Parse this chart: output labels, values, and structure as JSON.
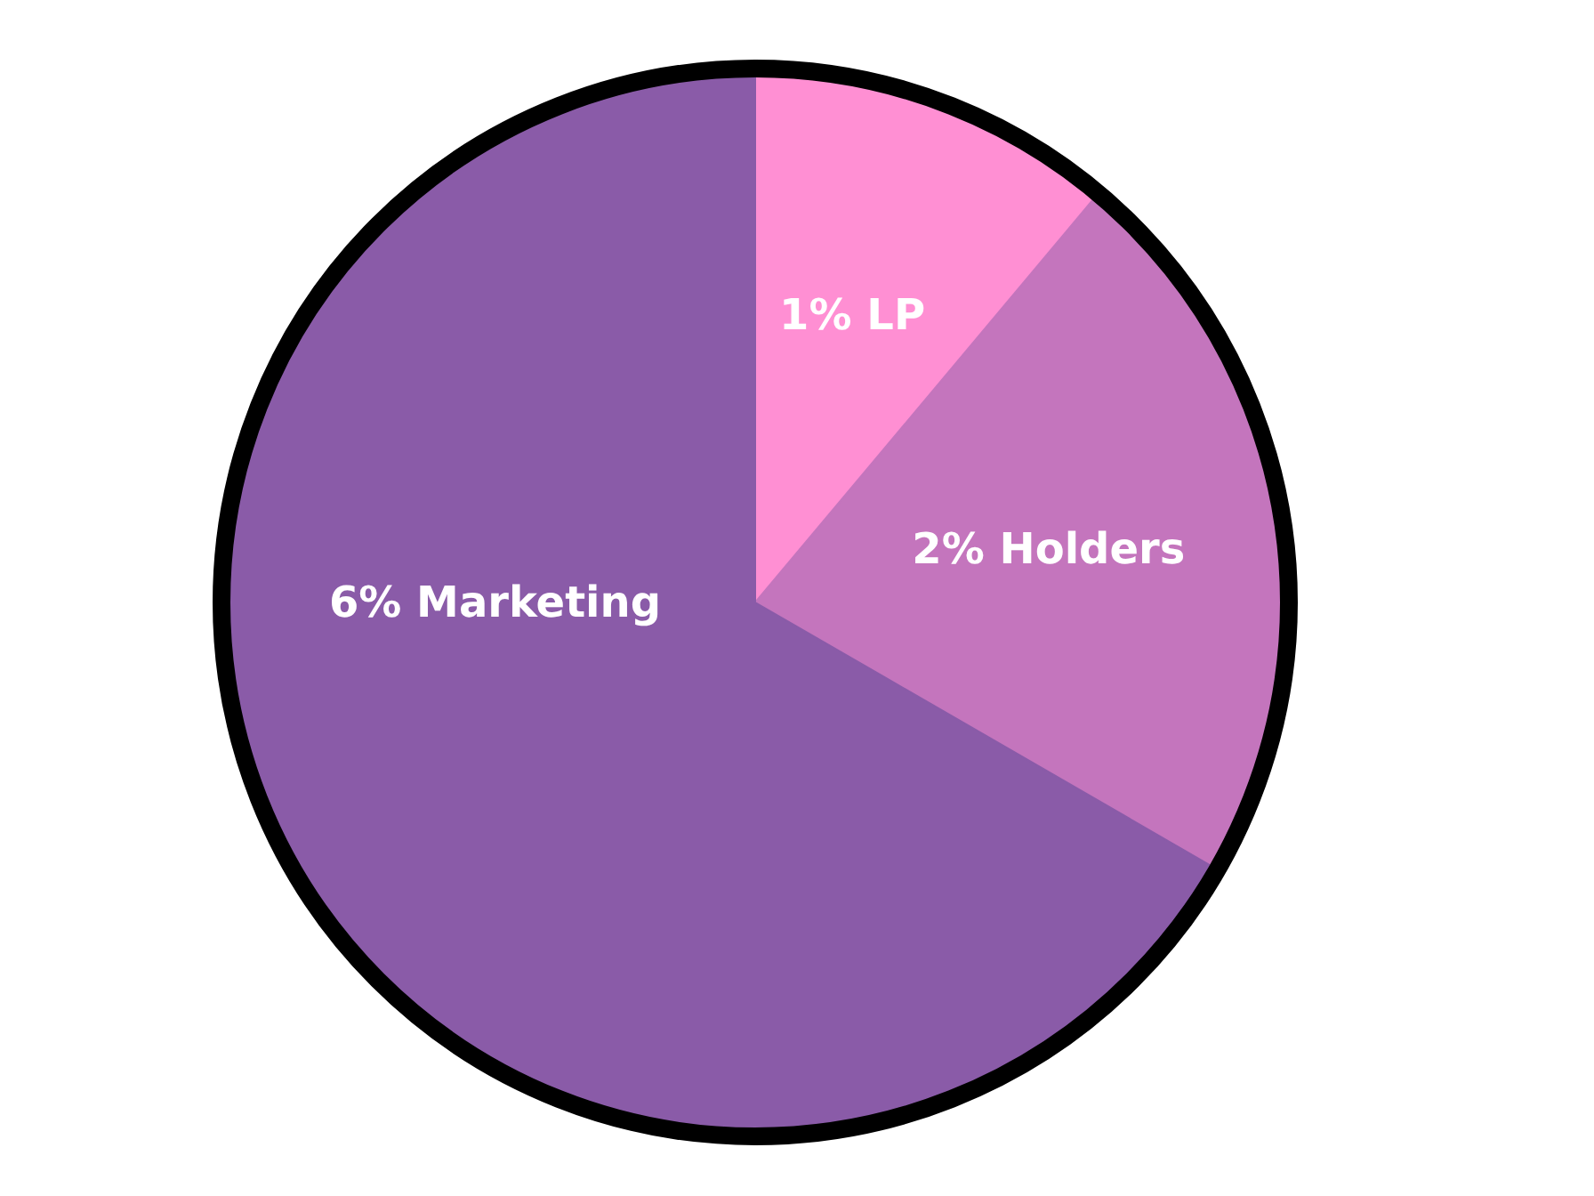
{
  "chart_data": {
    "type": "pie",
    "categories": [
      "LP",
      "Holders",
      "Marketing"
    ],
    "values": [
      1,
      2,
      6
    ],
    "value_labels": [
      "1%",
      "2%",
      "6%"
    ],
    "colors": [
      "#ff8fd3",
      "#c475bd",
      "#8a5ba8"
    ]
  }
}
